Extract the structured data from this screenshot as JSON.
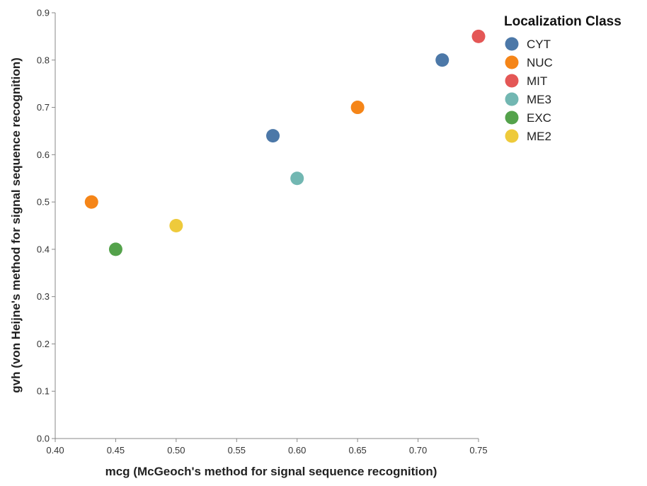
{
  "chart_data": {
    "type": "scatter",
    "title": "",
    "xlabel": "mcg (McGeoch's method for signal sequence recognition)",
    "ylabel": "gvh (von Heijne's method for signal sequence recognition)",
    "xlim": [
      0.4,
      0.75
    ],
    "ylim": [
      0.0,
      0.9
    ],
    "x_ticks": [
      "0.40",
      "0.45",
      "0.50",
      "0.55",
      "0.60",
      "0.65",
      "0.70",
      "0.75"
    ],
    "y_ticks": [
      "0.0",
      "0.1",
      "0.2",
      "0.3",
      "0.4",
      "0.5",
      "0.6",
      "0.7",
      "0.8",
      "0.9"
    ],
    "grid": false,
    "legend": {
      "title": "Localization Class",
      "placement": "top-right",
      "entries": [
        {
          "label": "CYT",
          "color": "#4c78a8"
        },
        {
          "label": "NUC",
          "color": "#f58518"
        },
        {
          "label": "MIT",
          "color": "#e45756"
        },
        {
          "label": "ME3",
          "color": "#72b7b2"
        },
        {
          "label": "EXC",
          "color": "#54a24b"
        },
        {
          "label": "ME2",
          "color": "#eeca3b"
        }
      ]
    },
    "points": [
      {
        "x": 0.58,
        "y": 0.64,
        "class": "CYT"
      },
      {
        "x": 0.72,
        "y": 0.8,
        "class": "CYT"
      },
      {
        "x": 0.43,
        "y": 0.5,
        "class": "NUC"
      },
      {
        "x": 0.65,
        "y": 0.7,
        "class": "NUC"
      },
      {
        "x": 0.75,
        "y": 0.85,
        "class": "MIT"
      },
      {
        "x": 0.6,
        "y": 0.55,
        "class": "ME3"
      },
      {
        "x": 0.45,
        "y": 0.4,
        "class": "EXC"
      },
      {
        "x": 0.5,
        "y": 0.45,
        "class": "ME2"
      }
    ]
  }
}
